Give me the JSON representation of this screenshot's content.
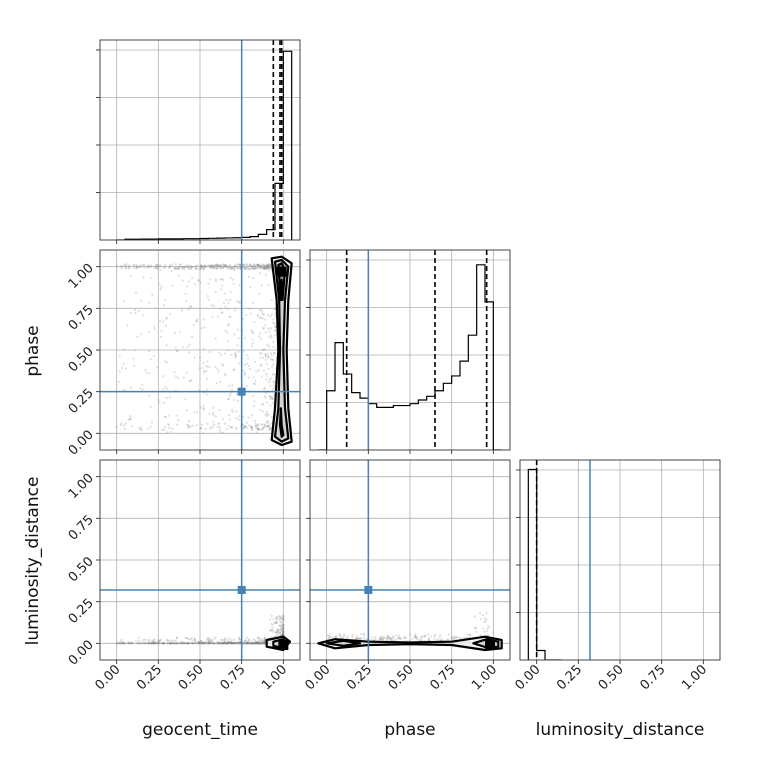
{
  "chart_data": {
    "type": "corner",
    "parameters": [
      "geocent_time",
      "phase",
      "luminosity_distance"
    ],
    "axis_range": [
      -0.1,
      1.1
    ],
    "tick_values": [
      0.0,
      0.25,
      0.5,
      0.75,
      1.0
    ],
    "tick_labels": [
      "0.00",
      "0.25",
      "0.50",
      "0.75",
      "1.00"
    ],
    "grid": true,
    "truth": {
      "geocent_time": 0.75,
      "phase": 0.25,
      "luminosity_distance": 0.32
    },
    "colors": {
      "truth": "#4682b4",
      "hist": "#000000",
      "grid": "#b0b0b0",
      "samples": "#7f7f7f"
    },
    "histograms": [
      {
        "param": "geocent_time",
        "quantiles": [
          0.94,
          0.98,
          0.99
        ],
        "bin_edges": [
          0.0,
          0.05,
          0.1,
          0.15,
          0.2,
          0.25,
          0.3,
          0.35,
          0.4,
          0.45,
          0.5,
          0.55,
          0.6,
          0.65,
          0.7,
          0.75,
          0.8,
          0.85,
          0.9,
          0.95,
          1.0,
          1.05
        ],
        "counts": [
          0,
          0.004,
          0.004,
          0.005,
          0.005,
          0.006,
          0.006,
          0.006,
          0.007,
          0.007,
          0.008,
          0.009,
          0.01,
          0.011,
          0.012,
          0.014,
          0.018,
          0.03,
          0.055,
          0.3,
          1.0
        ],
        "ymax": 1.06
      },
      {
        "param": "phase",
        "quantiles": [
          0.12,
          0.65,
          0.96
        ],
        "bin_edges": [
          -0.05,
          0.0,
          0.05,
          0.1,
          0.15,
          0.2,
          0.25,
          0.3,
          0.35,
          0.4,
          0.45,
          0.5,
          0.55,
          0.6,
          0.65,
          0.7,
          0.75,
          0.8,
          0.85,
          0.9,
          0.95,
          1.0,
          1.05
        ],
        "counts": [
          0.0,
          0.32,
          0.58,
          0.41,
          0.31,
          0.28,
          0.25,
          0.23,
          0.23,
          0.24,
          0.24,
          0.25,
          0.27,
          0.29,
          0.32,
          0.36,
          0.4,
          0.48,
          0.62,
          1.0,
          0.8,
          0.0
        ],
        "ymax": 1.08
      },
      {
        "param": "luminosity_distance",
        "quantiles": [
          0.0
        ],
        "bin_edges": [
          -0.05,
          0.0,
          0.05,
          0.1,
          0.15
        ],
        "counts": [
          1.0,
          0.05,
          0.0,
          0.0
        ],
        "ymax": 1.05
      }
    ],
    "scatter_panels": [
      {
        "x_param": "geocent_time",
        "y_param": "phase",
        "mode": {
          "x": 0.99,
          "y": 0.97
        },
        "contours": [
          {
            "level": 1,
            "points": [
              [
                0.93,
                1.05
              ],
              [
                0.99,
                1.06
              ],
              [
                1.05,
                1.02
              ],
              [
                1.03,
                0.8
              ],
              [
                1.02,
                0.5
              ],
              [
                1.03,
                0.15
              ],
              [
                1.05,
                -0.05
              ],
              [
                0.99,
                -0.07
              ],
              [
                0.93,
                -0.04
              ],
              [
                0.95,
                0.15
              ],
              [
                0.97,
                0.5
              ],
              [
                0.96,
                0.8
              ]
            ]
          },
          {
            "level": 2,
            "points": [
              [
                0.95,
                1.03
              ],
              [
                0.99,
                1.04
              ],
              [
                1.03,
                1.0
              ],
              [
                1.01,
                0.8
              ],
              [
                1.0,
                0.5
              ],
              [
                1.01,
                0.15
              ],
              [
                1.03,
                -0.03
              ],
              [
                0.99,
                -0.05
              ],
              [
                0.95,
                -0.02
              ],
              [
                0.97,
                0.15
              ],
              [
                0.98,
                0.5
              ],
              [
                0.975,
                0.8
              ]
            ]
          },
          {
            "level": 3,
            "points": [
              [
                0.97,
                1.01
              ],
              [
                0.99,
                1.02
              ],
              [
                1.01,
                0.98
              ],
              [
                0.995,
                0.8
              ],
              [
                0.99,
                0.92
              ],
              [
                0.985,
                0.8
              ]
            ]
          },
          {
            "level": 3,
            "points": [
              [
                0.985,
                0.15
              ],
              [
                0.99,
                0.05
              ],
              [
                1.0,
                -0.01
              ],
              [
                0.99,
                -0.02
              ],
              [
                0.98,
                0.05
              ]
            ]
          }
        ]
      },
      {
        "x_param": "geocent_time",
        "y_param": "luminosity_distance",
        "mode": {
          "x": 1.0,
          "y": -0.01
        },
        "contours": [
          {
            "level": 1,
            "points": [
              [
                0.9,
                0.02
              ],
              [
                1.0,
                0.04
              ],
              [
                1.04,
                0.01
              ],
              [
                1.0,
                -0.04
              ],
              [
                0.9,
                -0.02
              ]
            ]
          },
          {
            "level": 2,
            "points": [
              [
                0.94,
                0.01
              ],
              [
                1.0,
                0.025
              ],
              [
                1.02,
                0.0
              ],
              [
                1.0,
                -0.03
              ],
              [
                0.94,
                -0.015
              ]
            ]
          }
        ]
      },
      {
        "x_param": "phase",
        "y_param": "luminosity_distance",
        "mode": {
          "x": 0.98,
          "y": -0.01
        },
        "contours": [
          {
            "level": 1,
            "points": [
              [
                -0.05,
                0.0
              ],
              [
                0.05,
                0.025
              ],
              [
                0.25,
                0.01
              ],
              [
                0.5,
                0.005
              ],
              [
                0.75,
                0.01
              ],
              [
                0.95,
                0.04
              ],
              [
                1.05,
                0.02
              ],
              [
                1.05,
                -0.03
              ],
              [
                0.95,
                -0.04
              ],
              [
                0.75,
                -0.01
              ],
              [
                0.5,
                -0.005
              ],
              [
                0.25,
                -0.01
              ],
              [
                0.05,
                -0.03
              ]
            ]
          },
          {
            "level": 2,
            "points": [
              [
                0.0,
                0.0
              ],
              [
                0.1,
                0.015
              ],
              [
                0.2,
                0.0
              ],
              [
                0.1,
                -0.015
              ]
            ]
          },
          {
            "level": 2,
            "points": [
              [
                0.88,
                0.0
              ],
              [
                0.96,
                0.025
              ],
              [
                1.03,
                0.01
              ],
              [
                1.03,
                -0.02
              ],
              [
                0.96,
                -0.025
              ]
            ]
          }
        ]
      }
    ]
  }
}
